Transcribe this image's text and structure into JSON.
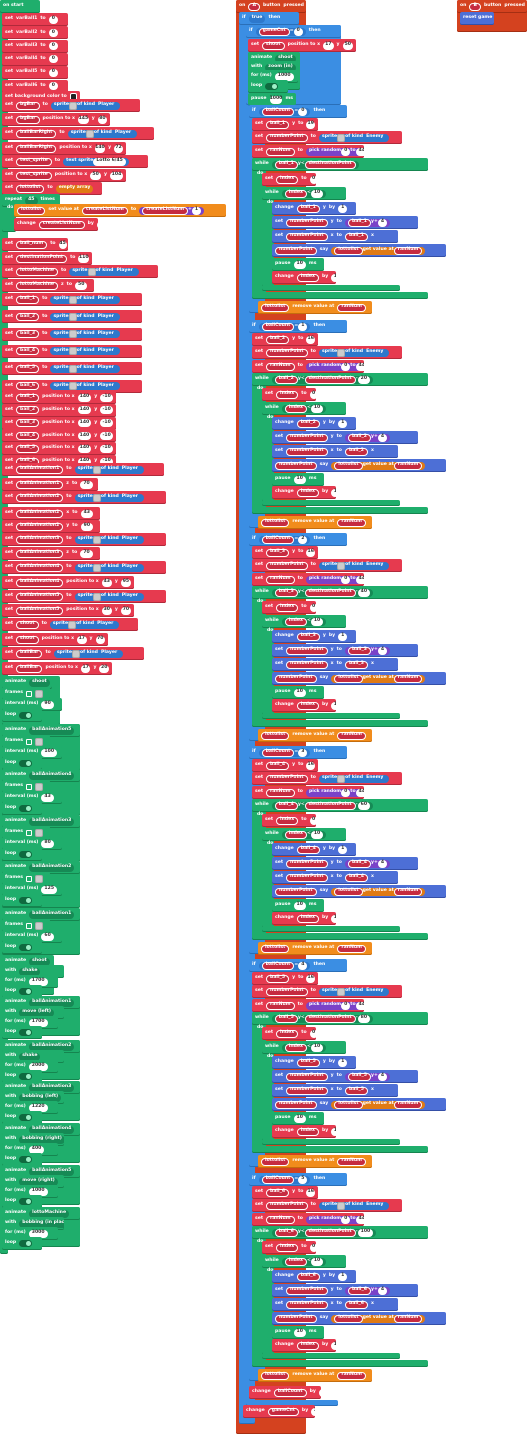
{
  "on_start_block": {
    "hat": "on start",
    "var_init": [
      {
        "label": "set",
        "var": "varBall1",
        "to": "to",
        "value": "0"
      },
      {
        "label": "set",
        "var": "varBall2",
        "to": "to",
        "value": "0"
      },
      {
        "label": "set",
        "var": "varBall3",
        "to": "to",
        "value": "0"
      },
      {
        "label": "set",
        "var": "varBall4",
        "to": "to",
        "value": "0"
      },
      {
        "label": "set",
        "var": "varBall5",
        "to": "to",
        "value": "0"
      },
      {
        "label": "set",
        "var": "varBall6",
        "to": "to",
        "value": "0"
      }
    ],
    "set_background": "set background color to",
    "bgbar_sprite": {
      "set": "set",
      "var": "bgBar",
      "to": "to",
      "fn": "sprite",
      "of_kind": "of kind",
      "kind": "Player"
    },
    "bgbar_pos": {
      "set": "set",
      "var": "bgBar",
      "label": "position to x",
      "x": "145",
      "y_label": "y",
      "y": "80"
    },
    "bar_right_sprite": {
      "set": "set",
      "var": "ballBarRight",
      "to": "to",
      "fn": "sprite",
      "of_kind": "of kind",
      "kind": "Player"
    },
    "bar_right_pos": {
      "set": "set",
      "var": "ballBarRight",
      "label": "position to x",
      "x": "140",
      "y_label": "y",
      "y": "72"
    },
    "test_sprite": {
      "set": "set",
      "var": "test_sprite",
      "to": "to",
      "fn": "text sprite",
      "text": "Lotto 6/45"
    },
    "test_sprite_pos": {
      "set": "set",
      "var": "test_sprite",
      "label": "position to x",
      "x": "50",
      "y_label": "y",
      "y": "104"
    },
    "lottolist_empty": {
      "set": "set",
      "var": "lottolist",
      "to": "to",
      "value": "empty array"
    },
    "repeat": {
      "label": "repeat",
      "count": "45",
      "times": "times",
      "do": "do"
    },
    "set_value_at": {
      "var": "lottolist",
      "label": "set value at",
      "index": "createListNum",
      "to": "to",
      "a": "createListNum",
      "op": "+",
      "b": "1"
    },
    "change_createlist": {
      "label": "change",
      "var": "createListNum",
      "by": "by",
      "value": "1"
    },
    "ball_num": {
      "set": "set",
      "var": "ball_num",
      "to": "to",
      "value": "45"
    },
    "destination_point": {
      "set": "set",
      "var": "destinationPoint",
      "to": "to",
      "value": "110"
    },
    "lotto_machine": {
      "set": "set",
      "var": "lottoMachine",
      "to": "to",
      "fn": "sprite",
      "of_kind": "of kind",
      "kind": "Player"
    },
    "lotto_machine_z": {
      "set": "set",
      "var": "lottoMachine",
      "label": "z",
      "to": "to",
      "value": "50"
    },
    "ball_sprites": [
      {
        "set": "set",
        "var": "ball_1",
        "to": "to",
        "fn": "sprite",
        "of_kind": "of kind",
        "kind": "Player"
      },
      {
        "set": "set",
        "var": "ball_2",
        "to": "to",
        "fn": "sprite",
        "of_kind": "of kind",
        "kind": "Player"
      },
      {
        "set": "set",
        "var": "ball_3",
        "to": "to",
        "fn": "sprite",
        "of_kind": "of kind",
        "kind": "Player"
      },
      {
        "set": "set",
        "var": "ball_4",
        "to": "to",
        "fn": "sprite",
        "of_kind": "of kind",
        "kind": "Player"
      },
      {
        "set": "set",
        "var": "ball_5",
        "to": "to",
        "fn": "sprite",
        "of_kind": "of kind",
        "kind": "Player"
      },
      {
        "set": "set",
        "var": "ball_6",
        "to": "to",
        "fn": "sprite",
        "of_kind": "of kind",
        "kind": "Player"
      }
    ],
    "ball_positions": [
      {
        "set": "set",
        "var": "ball_1",
        "label": "position to x",
        "x": "140",
        "y_label": "y",
        "y": "-10"
      },
      {
        "set": "set",
        "var": "ball_2",
        "label": "position to x",
        "x": "140",
        "y_label": "y",
        "y": "-10"
      },
      {
        "set": "set",
        "var": "ball_3",
        "label": "position to x",
        "x": "140",
        "y_label": "y",
        "y": "-10"
      },
      {
        "set": "set",
        "var": "ball_4",
        "label": "position to x",
        "x": "140",
        "y_label": "y",
        "y": "-10"
      },
      {
        "set": "set",
        "var": "ball_5",
        "label": "position to x",
        "x": "140",
        "y_label": "y",
        "y": "-10"
      },
      {
        "set": "set",
        "var": "ball_6",
        "label": "position to x",
        "x": "140",
        "y_label": "y",
        "y": "-10"
      }
    ],
    "anim1_sprite": {
      "set": "set",
      "var": "ballAnimation1",
      "to": "to",
      "fn": "sprite",
      "of_kind": "of kind",
      "kind": "Player"
    },
    "anim1_z": {
      "set": "set",
      "var": "ballAnimation1",
      "label": "z",
      "to": "to",
      "value": "70"
    },
    "anim2_sprite": {
      "set": "set",
      "var": "ballAnimation2",
      "to": "to",
      "fn": "sprite",
      "of_kind": "of kind",
      "kind": "Player"
    },
    "anim2_x": {
      "set": "set",
      "var": "ballAnimation2",
      "label": "x",
      "to": "to",
      "value": "43"
    },
    "anim2_y": {
      "set": "set",
      "var": "ballAnimation2",
      "label": "y",
      "to": "to",
      "value": "90"
    },
    "anim3_sprite": {
      "set": "set",
      "var": "ballAnimation3",
      "to": "to",
      "fn": "sprite",
      "of_kind": "of kind",
      "kind": "Player"
    },
    "anim3_z": {
      "set": "set",
      "var": "ballAnimation3",
      "label": "z",
      "to": "to",
      "value": "70"
    },
    "anim4_sprite": {
      "set": "set",
      "var": "ballAnimation4",
      "to": "to",
      "fn": "sprite",
      "of_kind": "of kind",
      "kind": "Player"
    },
    "anim4_pos": {
      "set": "set",
      "var": "ballAnimation4",
      "label": "position to x",
      "x": "43",
      "y_label": "y",
      "y": "95"
    },
    "anim5_sprite": {
      "set": "set",
      "var": "ballAnimation5",
      "to": "to",
      "fn": "sprite",
      "of_kind": "of kind",
      "kind": "Player"
    },
    "anim5_pos": {
      "set": "set",
      "var": "ballAnimation5",
      "label": "position to x",
      "x": "30",
      "y_label": "y",
      "y": "70"
    },
    "shoot_sprite": {
      "set": "set",
      "var": "shoot",
      "to": "to",
      "fn": "sprite",
      "of_kind": "of kind",
      "kind": "Player"
    },
    "shoot_pos": {
      "set": "set",
      "var": "shoot",
      "label": "position to x",
      "x": "17",
      "y_label": "y",
      "y": "70"
    },
    "ballbar_sprite": {
      "set": "set",
      "var": "ballBar",
      "to": "to",
      "fn": "sprite",
      "of_kind": "of kind",
      "kind": "Player"
    },
    "ballbar_pos": {
      "set": "set",
      "var": "ballBar",
      "label": "position to x",
      "x": "17",
      "y_label": "y",
      "y": "20"
    },
    "animate_frames": [
      {
        "animate": "animate",
        "target": "shoot",
        "frames": "frames",
        "interval_label": "interval (ms)",
        "interval": "90",
        "loop": "loop"
      },
      {
        "animate": "animate",
        "target": "ballAnimation5",
        "frames": "frames",
        "interval_label": "interval (ms)",
        "interval": "100",
        "loop": "loop"
      },
      {
        "animate": "animate",
        "target": "ballAnimation4",
        "frames": "frames",
        "interval_label": "interval (ms)",
        "interval": "43",
        "loop": "loop"
      },
      {
        "animate": "animate",
        "target": "ballAnimation3",
        "frames": "frames",
        "interval_label": "interval (ms)",
        "interval": "80",
        "loop": "loop"
      },
      {
        "animate": "animate",
        "target": "ballAnimation2",
        "frames": "frames",
        "interval_label": "interval (ms)",
        "interval": "125",
        "loop": "loop"
      },
      {
        "animate": "animate",
        "target": "ballAnimation1",
        "frames": "frames",
        "interval_label": "interval (ms)",
        "interval": "60",
        "loop": "loop"
      }
    ],
    "animate_effects": [
      {
        "animate": "animate",
        "target": "shoot",
        "with": "with",
        "effect": "shake",
        "for": "for (ms)",
        "ms": "1700",
        "loop": "loop"
      },
      {
        "animate": "animate",
        "target": "ballAnimation1",
        "with": "with",
        "effect": "move (left)",
        "for": "for (ms)",
        "ms": "1700",
        "loop": "loop"
      },
      {
        "animate": "animate",
        "target": "ballAnimation2",
        "with": "with",
        "effect": "shake",
        "for": "for (ms)",
        "ms": "2000",
        "loop": "loop"
      },
      {
        "animate": "animate",
        "target": "ballAnimation3",
        "with": "with",
        "effect": "bobbing (left)",
        "for": "for (ms)",
        "ms": "1220",
        "loop": "loop"
      },
      {
        "animate": "animate",
        "target": "ballAnimation4",
        "with": "with",
        "effect": "bobbing (right)",
        "for": "for (ms)",
        "ms": "400",
        "loop": "loop"
      },
      {
        "animate": "animate",
        "target": "ballAnimation5",
        "with": "with",
        "effect": "move (right)",
        "for": "for (ms)",
        "ms": "1000",
        "loop": "loop"
      },
      {
        "animate": "animate",
        "target": "lottoMachine",
        "with": "with",
        "effect": "bobbing (in place)",
        "for": "for (ms)",
        "ms": "3000",
        "loop": "loop"
      }
    ]
  },
  "a_button_block": {
    "hat": {
      "on": "on",
      "button": "A",
      "label": "button",
      "event": "pressed"
    },
    "if_label": "if",
    "then_label": "then",
    "if_true": "true",
    "if_gamecnt": {
      "var": "gameCnt",
      "op": "=",
      "value": "0"
    },
    "shoot_pos": {
      "set": "set",
      "var": "shoot",
      "label": "position to x",
      "x": "17",
      "y_label": "y",
      "y": "50"
    },
    "animate_shoot": {
      "animate": "animate",
      "target": "shoot",
      "with": "with",
      "effect": "zoom (in)",
      "for": "for (ms)",
      "ms": "1000",
      "loop": "loop"
    },
    "pause": {
      "label": "pause",
      "ms": "1000",
      "unit": "ms"
    },
    "balls": [
      {
        "count": "0",
        "ball": "ball_1",
        "dest_offset": "",
        "score": "19"
      },
      {
        "count": "1",
        "ball": "ball_2",
        "dest_offset": "20",
        "score": "16"
      },
      {
        "count": "2",
        "ball": "ball_3",
        "dest_offset": "40",
        "score": "16"
      },
      {
        "count": "3",
        "ball": "ball_4",
        "dest_offset": "60",
        "score": "16"
      },
      {
        "count": "4",
        "ball": "ball_5",
        "dest_offset": "80",
        "score": "16"
      },
      {
        "count": "5",
        "ball": "ball_6",
        "dest_offset": "100",
        "score": "16"
      }
    ],
    "labels": {
      "ballcount": "ballCount",
      "eq": "=",
      "set": "set",
      "y": "y",
      "x": "x",
      "to": "to",
      "numberpoint": "numberPoint",
      "sprite": "sprite",
      "of_kind": "of kind",
      "enemy": "Enemy",
      "ranNum": "ranNum",
      "pick_random": "pick random",
      "rand_from": "0",
      "rand_to_label": "to",
      "rand_to": "44",
      "while": "while",
      "lt": "<",
      "destination": "destinationPoint",
      "minus": "-",
      "do": "do",
      "set_index": "index",
      "index": "index",
      "index_limit": "10",
      "change": "change",
      "by": "by",
      "one": "1",
      "plus": "+",
      "four": "4",
      "say": "say",
      "lottolist": "lottolist",
      "get_value_at": "get value at",
      "pause": "pause",
      "pause_ms": "10",
      "ms": "ms",
      "remove": "remove value at"
    },
    "change_ballcount": {
      "label": "change",
      "var": "ballCount",
      "by": "by",
      "value": "1"
    },
    "change_gamecnt": {
      "label": "change",
      "var": "gameCnt",
      "by": "by",
      "value": "1"
    }
  },
  "b_button_block": {
    "hat": {
      "on": "on",
      "button": "B",
      "label": "button",
      "event": "pressed"
    },
    "reset": "reset game"
  }
}
